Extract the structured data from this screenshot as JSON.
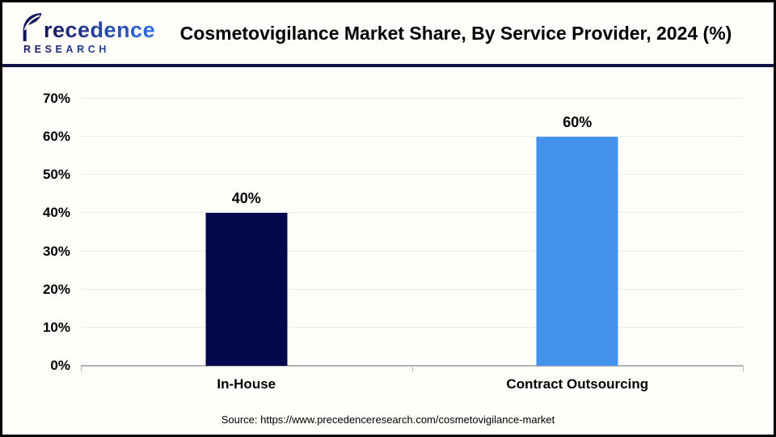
{
  "header": {
    "logo": {
      "brand": "Precedence",
      "after_leaf": "recedence",
      "line2": "RESEARCH"
    }
  },
  "chart_data": {
    "type": "bar",
    "title": "Cosmetovigilance Market Share, By Service Provider, 2024 (%)",
    "categories": [
      "In-House",
      "Contract Outsourcing"
    ],
    "values": [
      40,
      60
    ],
    "bar_colors": [
      "#04094d",
      "#4592ec"
    ],
    "xlabel": "",
    "ylabel": "",
    "ylim": [
      0,
      70
    ],
    "ytick_step": 10,
    "tick_suffix": "%",
    "data_label_suffix": "%",
    "grid": true,
    "legend": false,
    "gridline_color": "#ececec",
    "axis_color": "#b3b3b3"
  },
  "footer": {
    "source": "Source: https://www.precedenceresearch.com/cosmetovigilance-market"
  }
}
